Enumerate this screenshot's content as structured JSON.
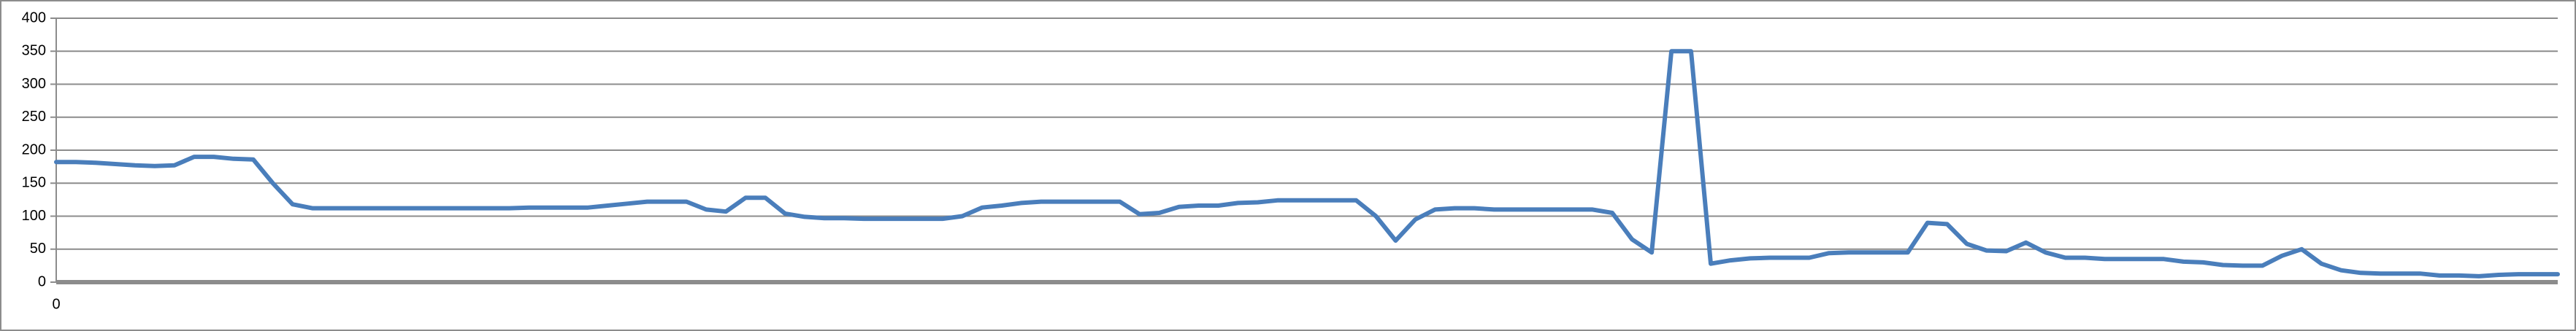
{
  "chart_data": {
    "type": "line",
    "categories": [
      "0",
      null,
      null,
      null,
      null,
      null,
      null,
      null,
      null,
      null,
      null,
      null,
      null,
      null,
      null,
      null,
      null,
      null,
      null,
      null,
      null,
      null,
      null,
      null,
      null,
      null,
      null,
      null,
      null,
      null,
      null,
      null,
      null,
      null,
      null,
      null,
      null,
      null,
      null,
      null,
      null,
      null,
      null,
      null,
      null,
      null,
      null,
      null,
      null,
      null,
      null,
      null,
      null,
      null,
      null,
      null,
      null,
      null,
      null,
      null,
      null,
      null,
      null,
      null,
      null,
      null,
      null,
      null,
      null,
      null,
      null,
      null,
      null,
      null,
      null,
      null,
      null,
      null,
      null,
      null,
      null,
      null,
      null,
      null,
      null,
      null,
      null,
      null,
      null,
      null,
      null,
      null,
      null,
      null,
      null,
      null,
      null,
      null,
      null,
      null,
      null,
      null,
      null,
      null,
      null,
      null,
      null,
      null,
      null,
      null,
      null,
      null,
      null,
      null,
      null,
      null,
      null,
      null,
      null,
      null,
      null,
      null,
      null,
      null,
      null,
      null,
      null,
      null
    ],
    "series": [
      {
        "color": "#4a7ebb",
        "values": [
          182,
          182,
          181,
          179,
          177,
          176,
          177,
          190,
          190,
          187,
          186,
          150,
          118,
          112,
          112,
          112,
          112,
          112,
          112,
          112,
          112,
          112,
          112,
          112,
          113,
          113,
          113,
          113,
          116,
          119,
          122,
          122,
          122,
          110,
          107,
          128,
          128,
          104,
          99,
          97,
          97,
          96,
          96,
          96,
          96,
          96,
          100,
          113,
          116,
          120,
          122,
          122,
          122,
          122,
          122,
          103,
          105,
          114,
          116,
          116,
          120,
          121,
          124,
          124,
          124,
          124,
          124,
          100,
          63,
          95,
          110,
          112,
          112,
          110,
          110,
          110,
          110,
          110,
          110,
          105,
          65,
          45,
          350,
          350,
          28,
          33,
          36,
          37,
          37,
          37,
          44,
          45,
          45,
          45,
          45,
          90,
          88,
          58,
          48,
          47,
          60,
          45,
          37,
          37,
          35,
          35,
          35,
          35,
          31,
          30,
          26,
          25,
          25,
          40,
          50,
          28,
          18,
          14,
          13,
          13,
          13,
          10,
          10,
          9,
          11,
          12,
          12,
          12
        ]
      }
    ],
    "ylim": [
      0,
      400
    ],
    "yticks": [
      0,
      50,
      100,
      150,
      200,
      250,
      300,
      350,
      400
    ],
    "grid": true
  }
}
